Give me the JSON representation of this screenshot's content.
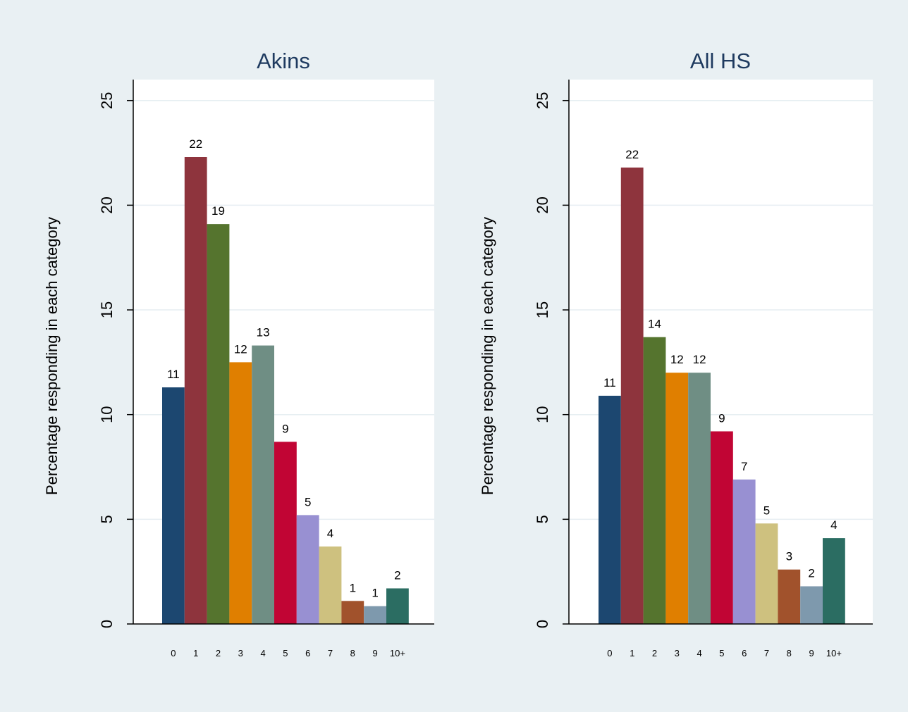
{
  "chart_data": [
    {
      "type": "bar",
      "title": "Akins",
      "ylabel": "Percentage responding in each category",
      "xlabel": "",
      "categories": [
        "0",
        "1",
        "2",
        "3",
        "4",
        "5",
        "6",
        "7",
        "8",
        "9",
        "10+"
      ],
      "values": [
        11.3,
        22.3,
        19.1,
        12.5,
        13.3,
        8.7,
        5.2,
        3.7,
        1.1,
        0.85,
        1.7
      ],
      "data_labels": [
        "11",
        "22",
        "19",
        "12",
        "13",
        "9",
        "5",
        "4",
        "1",
        "1",
        "2"
      ],
      "ylim": [
        0,
        26
      ],
      "yticks": [
        0,
        5,
        10,
        15,
        20,
        25
      ],
      "grid": true
    },
    {
      "type": "bar",
      "title": "All HS",
      "ylabel": "Percentage responding in each category",
      "xlabel": "",
      "categories": [
        "0",
        "1",
        "2",
        "3",
        "4",
        "5",
        "6",
        "7",
        "8",
        "9",
        "10+"
      ],
      "values": [
        10.9,
        21.8,
        13.7,
        12.0,
        12.0,
        9.2,
        6.9,
        4.8,
        2.6,
        1.8,
        4.1
      ],
      "data_labels": [
        "11",
        "22",
        "14",
        "12",
        "12",
        "9",
        "7",
        "5",
        "3",
        "2",
        "4"
      ],
      "ylim": [
        0,
        26
      ],
      "yticks": [
        0,
        5,
        10,
        15,
        20,
        25
      ],
      "grid": true
    }
  ],
  "colors": {
    "background": "#e9f0f3",
    "plot_background": "#ffffff",
    "bars": [
      "#1c4770",
      "#8e343d",
      "#55742e",
      "#e07f00",
      "#6f8e84",
      "#c10534",
      "#9890d2",
      "#cec17f",
      "#a1522c",
      "#7e99ad",
      "#2b6d62"
    ]
  }
}
